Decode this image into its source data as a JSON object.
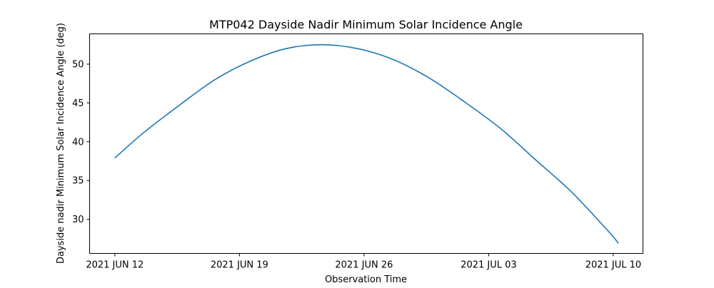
{
  "chart_data": {
    "type": "line",
    "title": "MTP042 Dayside Nadir Minimum Solar Incidence Angle",
    "xlabel": "Observation Time",
    "ylabel": "Dayside nadir Minimum Solar Incidence Angle (deg)",
    "xlim": [
      "2021-06-10T14:00",
      "2021-07-11T16:00"
    ],
    "ylim": [
      25.6,
      53.9
    ],
    "grid": false,
    "x_ticks": [
      {
        "value": "2021-06-12T00:00",
        "label": "2021 JUN 12"
      },
      {
        "value": "2021-06-19T00:00",
        "label": "2021 JUN 19"
      },
      {
        "value": "2021-06-26T00:00",
        "label": "2021 JUN 26"
      },
      {
        "value": "2021-07-03T00:00",
        "label": "2021 JUL 03"
      },
      {
        "value": "2021-07-10T00:00",
        "label": "2021 JUL 10"
      }
    ],
    "y_ticks": [
      30,
      35,
      40,
      45,
      50
    ],
    "series": [
      {
        "color": "#1f77b4",
        "x": [
          "2021-06-12T00:00",
          "2021-06-13T14:00",
          "2021-06-15T15:00",
          "2021-06-17T15:00",
          "2021-06-19T15:00",
          "2021-06-21T15:00",
          "2021-06-23T15:00",
          "2021-06-25T15:00",
          "2021-06-27T15:00",
          "2021-06-29T16:00",
          "2021-07-01T16:00",
          "2021-07-03T16:00",
          "2021-07-05T16:00",
          "2021-07-07T16:00",
          "2021-07-09T16:00",
          "2021-07-10T07:00"
        ],
        "y": [
          37.9,
          41.1,
          44.7,
          48.0,
          50.4,
          52.0,
          52.5,
          52.0,
          50.6,
          48.2,
          45.1,
          41.7,
          37.6,
          33.5,
          28.6,
          26.9
        ]
      }
    ]
  }
}
